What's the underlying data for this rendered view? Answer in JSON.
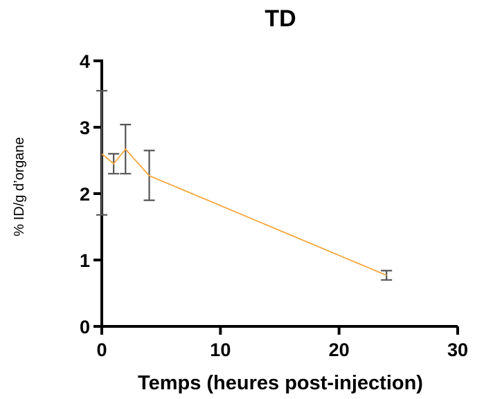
{
  "chart_data": {
    "type": "line",
    "title": "TD",
    "xlabel": "Temps (heures post-injection)",
    "ylabel": "% ID/g d’organe",
    "xlim": [
      0,
      30
    ],
    "ylim": [
      0,
      4
    ],
    "x_ticks": [
      0,
      10,
      20,
      30
    ],
    "y_ticks": [
      0,
      1,
      2,
      3,
      4
    ],
    "grid": false,
    "series": [
      {
        "color": "#F5A63B",
        "points": [
          {
            "x": 0,
            "y": 2.6,
            "err_low": 1.68,
            "err_high": 3.55
          },
          {
            "x": 1,
            "y": 2.45,
            "err_low": 2.3,
            "err_high": 2.6
          },
          {
            "x": 2,
            "y": 2.67,
            "err_low": 2.3,
            "err_high": 3.04
          },
          {
            "x": 4,
            "y": 2.27,
            "err_low": 1.9,
            "err_high": 2.65
          },
          {
            "x": 24,
            "y": 0.77,
            "err_low": 0.7,
            "err_high": 0.84
          }
        ]
      }
    ]
  }
}
